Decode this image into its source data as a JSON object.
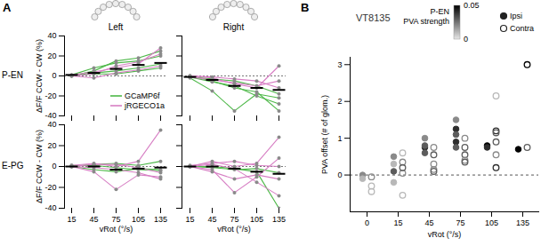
{
  "chart_data": [
    {
      "type": "line",
      "panel": "A",
      "row_label": "P-EN",
      "title": "Left",
      "x": [
        15,
        45,
        75,
        105,
        135
      ],
      "ylabel": "ΔF/F CCW - CW (%)",
      "ylim": [
        -40,
        40
      ],
      "yticks": [
        -40,
        -20,
        0,
        20,
        40
      ],
      "reference_y": 0,
      "tick_labels": "y",
      "legend": "bottom-right",
      "series": [
        {
          "name": "GCaMP6f",
          "color": "#4db848",
          "values": [
            [
              0,
              5,
              15,
              18,
              25
            ],
            [
              1,
              8,
              13,
              15,
              20
            ],
            [
              0,
              3,
              5,
              8,
              12
            ],
            [
              1,
              2,
              2,
              5,
              8
            ]
          ]
        },
        {
          "name": "jRGECO1a",
          "color": "#d77fc4",
          "values": [
            [
              1,
              4,
              8,
              12,
              28
            ],
            [
              0,
              2,
              10,
              14,
              22
            ],
            [
              0,
              -2,
              3,
              6,
              10
            ]
          ]
        }
      ],
      "mean": [
        1,
        3,
        7,
        11,
        13
      ]
    },
    {
      "type": "line",
      "panel": "A",
      "title": "Right",
      "x": [
        15,
        45,
        75,
        105,
        135
      ],
      "ylim": [
        -40,
        40
      ],
      "yticks": [
        -40,
        -20,
        0,
        20,
        40
      ],
      "reference_y": 0,
      "tick_labels": false,
      "series": [
        {
          "name": "GCaMP6f",
          "color": "#4db848",
          "values": [
            [
              -2,
              -15,
              -35,
              -18,
              -22
            ],
            [
              -1,
              -6,
              -10,
              -20,
              -28
            ],
            [
              0,
              -5,
              -12,
              -16,
              -35
            ],
            [
              -1,
              -3,
              -5,
              -10,
              -18
            ]
          ]
        },
        {
          "name": "jRGECO1a",
          "color": "#d77fc4",
          "values": [
            [
              0,
              -2,
              -8,
              -12,
              10
            ],
            [
              -1,
              -4,
              -7,
              -10,
              -5
            ],
            [
              0,
              -1,
              -3,
              -5,
              -12
            ]
          ]
        }
      ],
      "mean": [
        -1,
        -4,
        -10,
        -12,
        -14
      ]
    },
    {
      "type": "line",
      "panel": "A",
      "row_label": "E-PG",
      "x": [
        15,
        45,
        75,
        105,
        135
      ],
      "xlabel": "vRot (°/s)",
      "ylabel": "ΔF/F CCW - CW (%)",
      "ylim": [
        -40,
        40
      ],
      "yticks": [
        -40,
        -20,
        0,
        20,
        40
      ],
      "reference_y": 0,
      "series": [
        {
          "name": "GCaMP6f",
          "color": "#4db848",
          "values": [
            [
              0,
              -3,
              -5,
              -2,
              -3
            ],
            [
              0,
              2,
              3,
              1,
              5
            ],
            [
              1,
              1,
              -1,
              -3,
              -4
            ]
          ]
        },
        {
          "name": "jRGECO1a",
          "color": "#d77fc4",
          "values": [
            [
              0,
              -5,
              -22,
              -8,
              -10
            ],
            [
              1,
              3,
              0,
              5,
              35
            ],
            [
              0,
              -1,
              -3,
              -6,
              -12
            ],
            [
              0,
              2,
              2,
              -1,
              -6
            ]
          ]
        }
      ],
      "mean": [
        0,
        0,
        -3,
        -2,
        -1
      ]
    },
    {
      "type": "line",
      "panel": "A",
      "x": [
        15,
        45,
        75,
        105,
        135
      ],
      "xlabel": "vRot (°/s)",
      "ylim": [
        -40,
        40
      ],
      "yticks": [
        -40,
        -20,
        0,
        20,
        40
      ],
      "reference_y": 0,
      "tick_labels": "x",
      "series": [
        {
          "name": "GCaMP6f",
          "color": "#4db848",
          "values": [
            [
              0,
              0,
              -2,
              -5,
              -40
            ],
            [
              0,
              -1,
              -3,
              -2,
              -6
            ]
          ]
        },
        {
          "name": "jRGECO1a",
          "color": "#d77fc4",
          "values": [
            [
              0,
              -3,
              -25,
              -10,
              8
            ],
            [
              0,
              -5,
              -12,
              -8,
              -12
            ],
            [
              0,
              2,
              -2,
              -15,
              -28
            ],
            [
              0,
              5,
              0,
              3,
              28
            ],
            [
              1,
              3,
              5,
              1,
              0
            ]
          ]
        }
      ],
      "mean": [
        0,
        0,
        -2,
        -5,
        -7
      ]
    },
    {
      "type": "scatter",
      "panel": "B",
      "title": "VT8135",
      "categories": [
        0,
        15,
        45,
        75,
        105,
        135
      ],
      "xlabel": "vRot (°/s)",
      "ylabel": "PVA offset (# of glom.)",
      "ylim": [
        -1,
        3.2
      ],
      "yticks": [
        0,
        1,
        2,
        3
      ],
      "reference_y": 0,
      "legend": "top-right",
      "colorbar": {
        "title": [
          "P-EN",
          "PVA strength"
        ],
        "range": [
          0,
          0.05
        ],
        "ticks": [
          0,
          0.05
        ]
      },
      "series": [
        {
          "name": "Ipsi",
          "marker": "filled circle",
          "x": [
            0,
            0,
            15,
            15,
            15,
            15,
            45,
            45,
            45,
            45,
            75,
            75,
            75,
            75,
            75,
            105,
            105,
            135
          ],
          "values": [
            0.0,
            -0.1,
            0.5,
            0.3,
            0.1,
            -0.2,
            0.75,
            0.8,
            0.6,
            1.0,
            1.25,
            1.1,
            0.9,
            0.75,
            1.5,
            0.8,
            0.75,
            0.7
          ],
          "strength": [
            0.02,
            0.01,
            0.02,
            0.01,
            0.03,
            0.01,
            0.04,
            0.03,
            0.03,
            0.02,
            0.04,
            0.03,
            0.04,
            0.03,
            0.02,
            0.05,
            0.04,
            0.05
          ]
        },
        {
          "name": "Contra",
          "marker": "open circle",
          "x": [
            0,
            0,
            0,
            15,
            15,
            15,
            15,
            15,
            45,
            45,
            45,
            45,
            45,
            75,
            75,
            75,
            75,
            75,
            105,
            105,
            105,
            105,
            105,
            105,
            135,
            135
          ],
          "values": [
            -0.05,
            -0.3,
            -0.45,
            0.6,
            0.35,
            0.05,
            -0.55,
            0.2,
            0.55,
            0.3,
            0.15,
            0.1,
            0.75,
            0.75,
            0.55,
            0.4,
            0.35,
            1.0,
            1.2,
            1.15,
            0.9,
            0.55,
            0.2,
            2.15,
            3.0,
            0.75
          ],
          "strength": [
            0.02,
            0.01,
            0.01,
            0.01,
            0.02,
            0.02,
            0.01,
            0.03,
            0.03,
            0.02,
            0.02,
            0.03,
            0.02,
            0.03,
            0.03,
            0.02,
            0.03,
            0.02,
            0.04,
            0.03,
            0.03,
            0.02,
            0.04,
            0.01,
            0.05,
            0.03
          ]
        }
      ]
    }
  ]
}
